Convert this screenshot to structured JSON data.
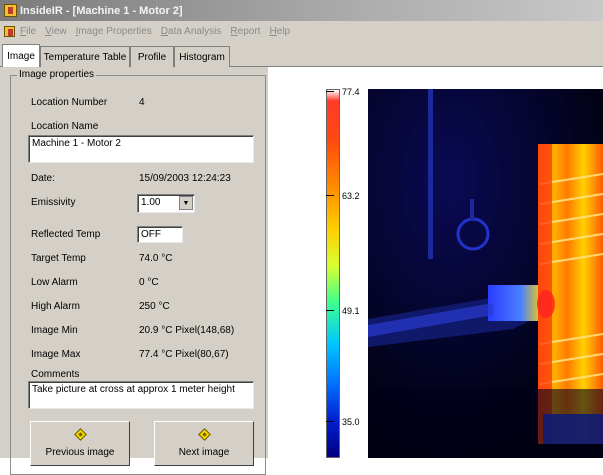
{
  "window": {
    "title": "InsideIR - [Machine 1 - Motor 2]"
  },
  "menu": [
    "File",
    "View",
    "Image Properties",
    "Data Analysis",
    "Report",
    "Help"
  ],
  "tabs": [
    {
      "label": "Image",
      "active": true
    },
    {
      "label": "Temperature Table",
      "active": false
    },
    {
      "label": "Profile",
      "active": false
    },
    {
      "label": "Histogram",
      "active": false
    }
  ],
  "props": {
    "group_title": "Image properties",
    "location_number_label": "Location Number",
    "location_number_value": "4",
    "location_name_label": "Location Name",
    "location_name_value": "Machine 1 - Motor 2",
    "date_label": "Date:",
    "date_value": "15/09/2003 12:24:23",
    "emissivity_label": "Emissivity",
    "emissivity_value": "1.00",
    "reflected_label": "Reflected Temp",
    "reflected_value": "OFF",
    "target_label": "Target Temp",
    "target_value": "74.0 °C",
    "low_alarm_label": "Low Alarm",
    "low_alarm_value": "0 °C",
    "high_alarm_label": "High Alarm",
    "high_alarm_value": "250 °C",
    "image_min_label": "Image Min",
    "image_min_value": "20.9 °C  Pixel(148,68)",
    "image_max_label": "Image Max",
    "image_max_value": "77.4 °C  Pixel(80,67)",
    "comments_label": "Comments",
    "comments_value": "Take picture at cross at approx 1 meter height"
  },
  "buttons": {
    "previous": "Previous image",
    "next": "Next image"
  },
  "scale": {
    "labels": [
      "77.4",
      "63.2",
      "49.1",
      "35.0"
    ]
  },
  "colors": {
    "titlebar": "#7b7b7b",
    "panel": "#d4d0c8",
    "hot": "#ff3a2a",
    "cold": "#000080"
  }
}
